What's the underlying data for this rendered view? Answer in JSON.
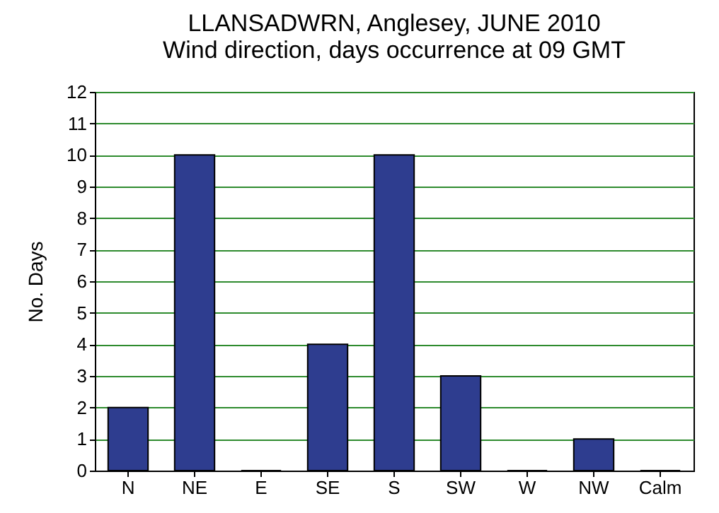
{
  "chart_data": {
    "type": "bar",
    "title": "LLANSADWRN, Anglesey, JUNE 2010",
    "subtitle": "Wind direction, days occurrence at 09 GMT",
    "ylabel": "No. Days",
    "categories": [
      "N",
      "NE",
      "E",
      "SE",
      "S",
      "SW",
      "W",
      "NW",
      "Calm"
    ],
    "values": [
      2,
      10,
      0,
      4,
      10,
      3,
      0,
      1,
      0
    ],
    "color": "#2e3d8f",
    "ylim": [
      0,
      12
    ],
    "yticks": [
      0,
      1,
      2,
      3,
      4,
      5,
      6,
      7,
      8,
      9,
      10,
      11,
      12
    ],
    "grid": "y"
  }
}
